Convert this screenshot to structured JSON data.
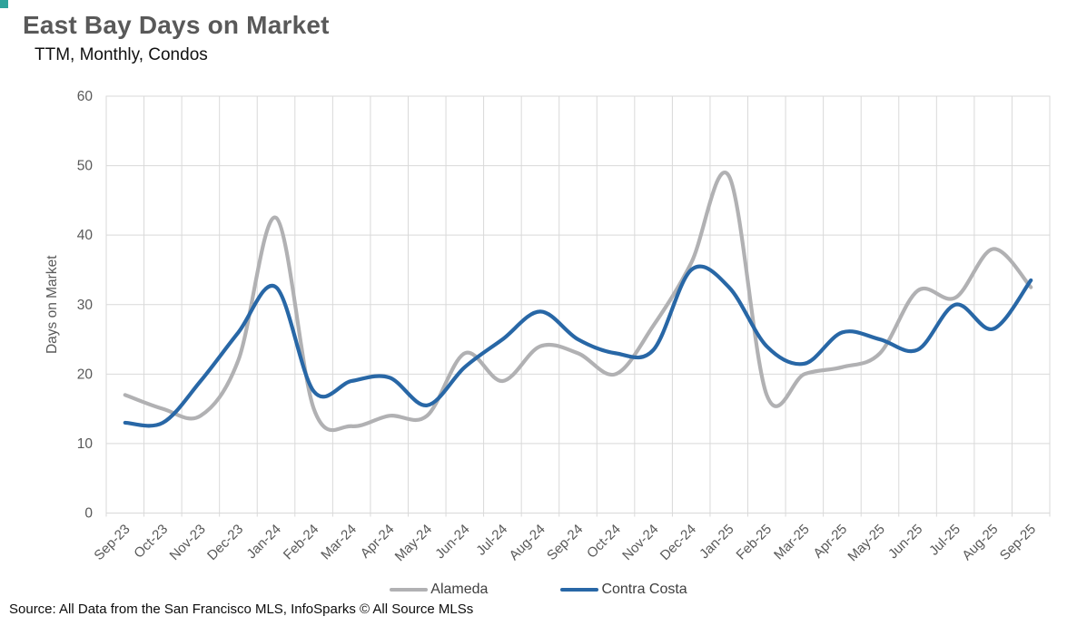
{
  "header": {
    "title": "East Bay Days on Market",
    "subtitle": "TTM, Monthly, Condos"
  },
  "accent": {
    "corner_mark_color": "#2fa39b"
  },
  "source_note": "Source: All Data from the San Francisco MLS, InfoSparks © All Source MLSs",
  "chart_data": {
    "type": "line",
    "title": "East Bay Days on Market",
    "subtitle": "TTM, Monthly, Condos",
    "smoothed": true,
    "grid": true,
    "legend_position": "bottom",
    "xlabel": "",
    "ylabel": "Days on Market",
    "ylim": [
      0,
      60
    ],
    "ytick_step": 10,
    "categories": [
      "Sep-23",
      "Oct-23",
      "Nov-23",
      "Dec-23",
      "Jan-24",
      "Feb-24",
      "Mar-24",
      "Apr-24",
      "May-24",
      "Jun-24",
      "Jul-24",
      "Aug-24",
      "Sep-24",
      "Oct-24",
      "Nov-24",
      "Dec-24",
      "Jan-25",
      "Feb-25",
      "Mar-25",
      "Apr-25",
      "May-25",
      "Jun-25",
      "Jul-25",
      "Aug-25",
      "Sep-25"
    ],
    "series": [
      {
        "name": "Alameda",
        "color": "#b1b1b3",
        "values": [
          17,
          15,
          14,
          22,
          42.5,
          15,
          12.5,
          14,
          14,
          23,
          19,
          24,
          23,
          20,
          27,
          36,
          48.5,
          17,
          20,
          21,
          23,
          32,
          31,
          38,
          32.5
        ]
      },
      {
        "name": "Contra Costa",
        "color": "#2867a6",
        "values": [
          13,
          13,
          19,
          26,
          32.5,
          17.5,
          19,
          19.5,
          15.5,
          21,
          25,
          29,
          25,
          23,
          23.5,
          35,
          32.5,
          24,
          21.5,
          26,
          25,
          23.5,
          30,
          26.5,
          33.5
        ]
      }
    ]
  }
}
